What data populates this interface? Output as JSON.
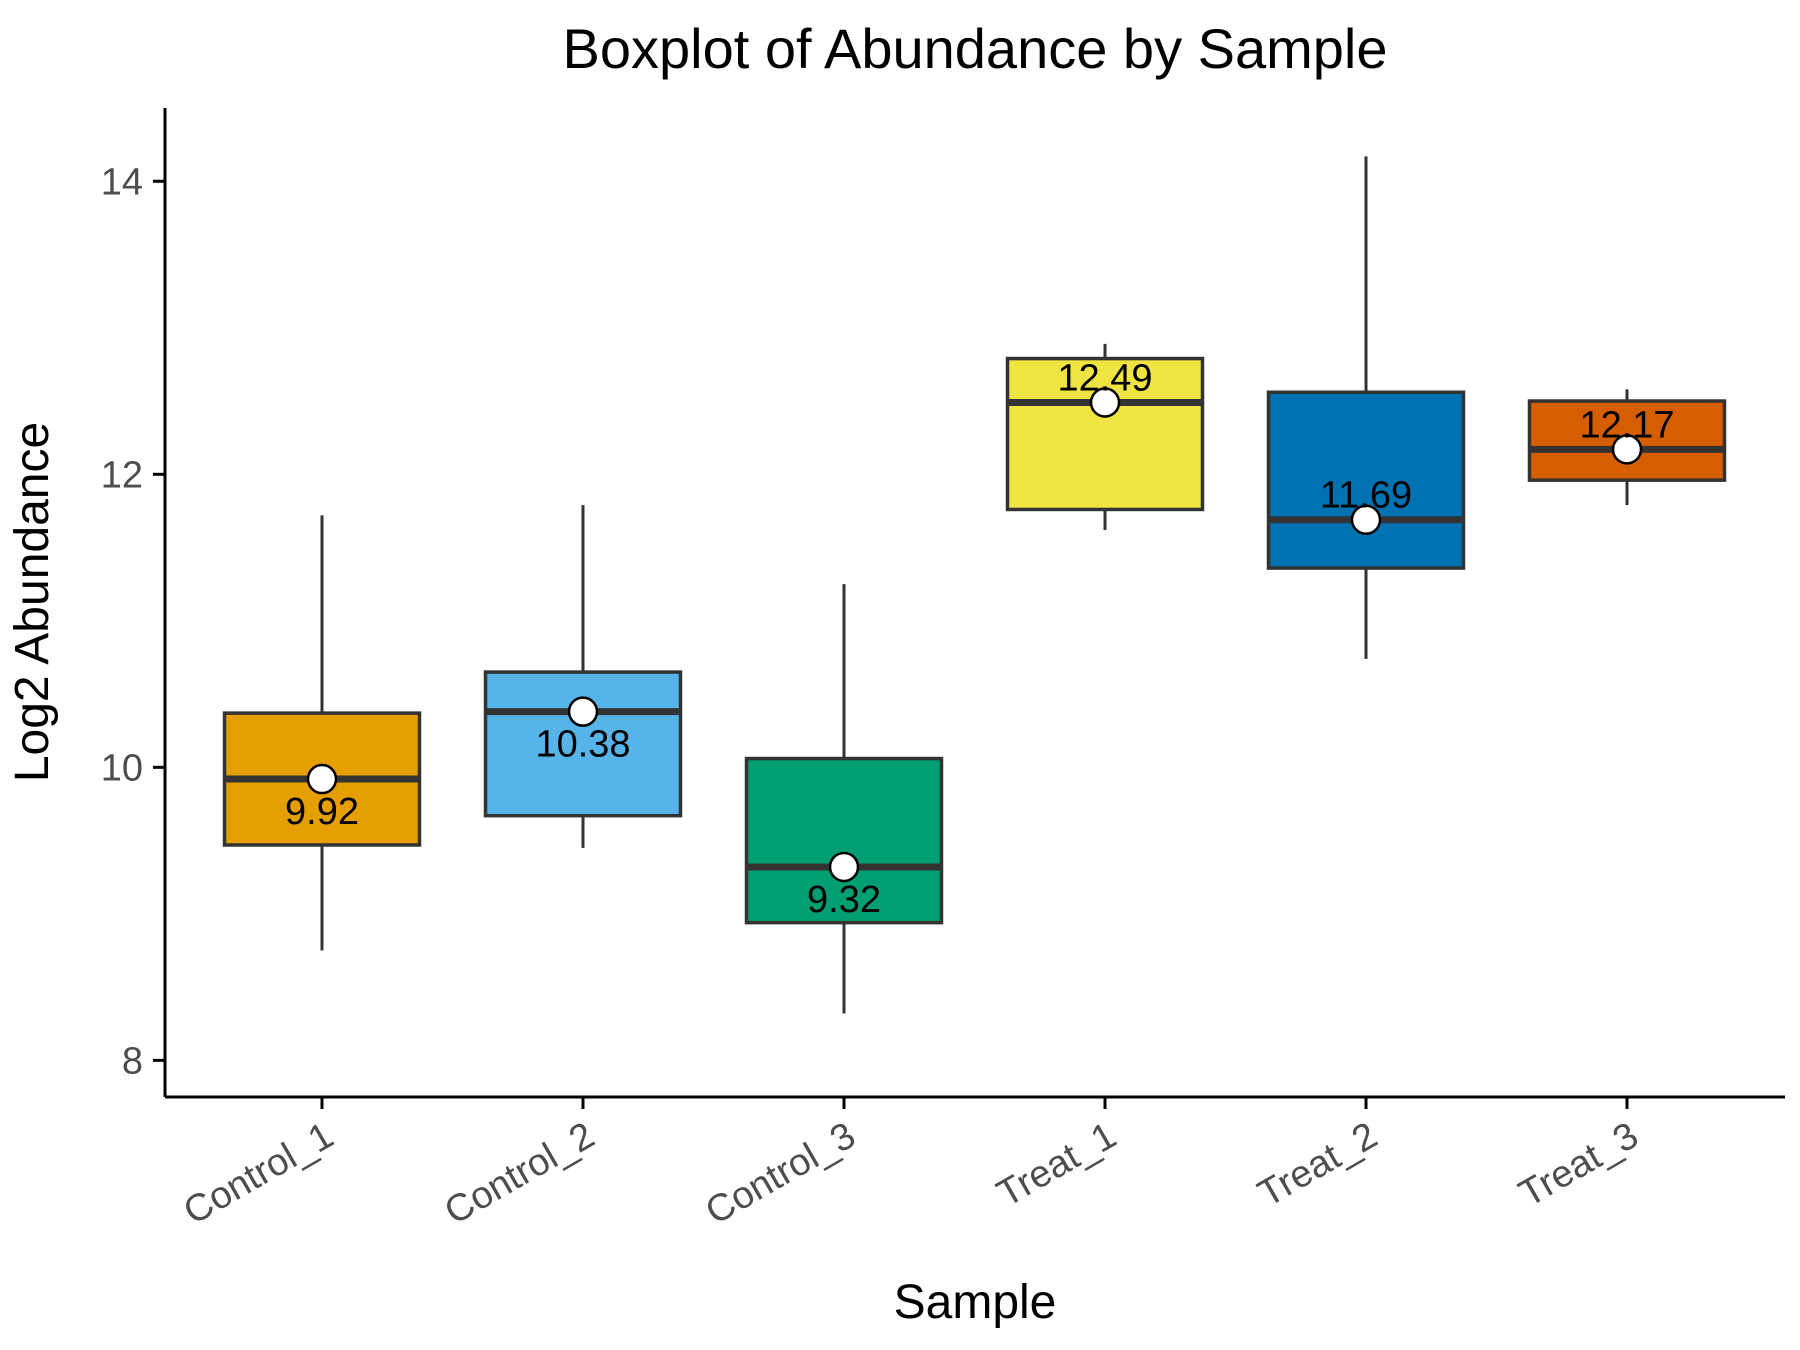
{
  "chart_data": {
    "type": "boxplot",
    "title": "Boxplot of Abundance by Sample",
    "xlabel": "Sample",
    "ylabel": "Log2 Abundance",
    "ylim": [
      7.75,
      14.5
    ],
    "yticks": [
      8,
      10,
      12,
      14
    ],
    "grid": false,
    "legend": "none",
    "categories": [
      "Control_1",
      "Control_2",
      "Control_3",
      "Treat_1",
      "Treat_2",
      "Treat_3"
    ],
    "boxes": [
      {
        "category": "Control_1",
        "color": "#E69F00",
        "whisker_low": 8.75,
        "q1": 9.47,
        "median": 9.92,
        "q3": 10.37,
        "whisker_high": 11.72,
        "mean": 9.92,
        "label": "9.92",
        "label_pos": "below"
      },
      {
        "category": "Control_2",
        "color": "#56B4E9",
        "whisker_low": 9.45,
        "q1": 9.67,
        "median": 10.38,
        "q3": 10.65,
        "whisker_high": 11.79,
        "mean": 10.38,
        "label": "10.38",
        "label_pos": "below"
      },
      {
        "category": "Control_3",
        "color": "#009E73",
        "whisker_low": 8.32,
        "q1": 8.94,
        "median": 9.32,
        "q3": 10.06,
        "whisker_high": 11.25,
        "mean": 9.32,
        "label": "9.32",
        "label_pos": "below"
      },
      {
        "category": "Treat_1",
        "color": "#F0E442",
        "whisker_low": 11.62,
        "q1": 11.76,
        "median": 12.49,
        "q3": 12.79,
        "whisker_high": 12.89,
        "mean": 12.49,
        "label": "12.49",
        "label_pos": "above"
      },
      {
        "category": "Treat_2",
        "color": "#0072B2",
        "whisker_low": 10.74,
        "q1": 11.36,
        "median": 11.69,
        "q3": 12.56,
        "whisker_high": 14.17,
        "mean": 11.69,
        "label": "11.69",
        "label_pos": "above"
      },
      {
        "category": "Treat_3",
        "color": "#D55E00",
        "whisker_low": 11.79,
        "q1": 11.96,
        "median": 12.17,
        "q3": 12.5,
        "whisker_high": 12.58,
        "mean": 12.17,
        "label": "12.17",
        "label_pos": "above"
      }
    ]
  }
}
